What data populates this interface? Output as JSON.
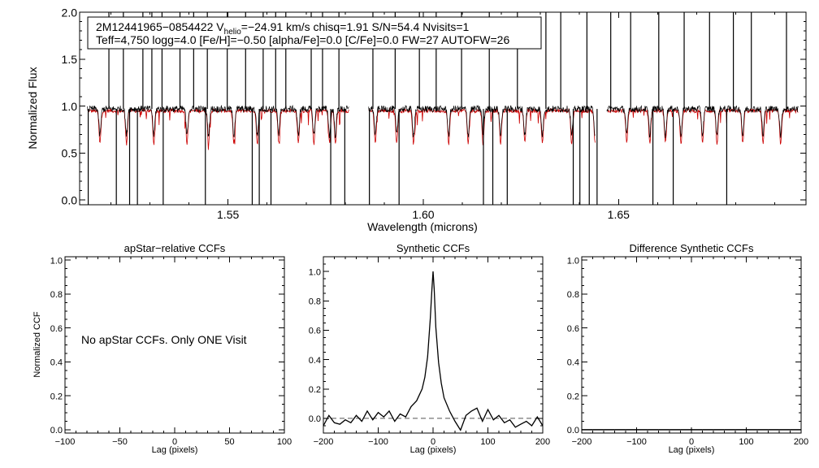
{
  "chart_data": [
    {
      "type": "line",
      "info_box": {
        "line1_prefix": "2M12441965−0854422  V",
        "line1_sub": "helio",
        "line1_suffix": "=−24.91 km/s  chisq=1.91  S/N=54.4  Nvisits=1",
        "line2": "Teff=4,750 logg=4.0 [Fe/H]=−0.50 [alpha/Fe]=0.0 [C/Fe]=0.0 FW=27 AUTOFW=26"
      },
      "xlabel": "Wavelength (microns)",
      "ylabel": "Normalized Flux",
      "xlim": [
        1.512,
        1.698
      ],
      "ylim": [
        -0.05,
        2.0
      ],
      "xticks": [
        "1.55",
        "1.60",
        "1.65"
      ],
      "xtick_values": [
        1.55,
        1.6,
        1.65
      ],
      "yticks": [
        "0.0",
        "0.5",
        "1.0",
        "1.5",
        "2.0"
      ],
      "ytick_values": [
        0.0,
        0.5,
        1.0,
        1.5,
        2.0
      ],
      "chip_ranges": [
        [
          1.514,
          1.581
        ],
        [
          1.586,
          1.644
        ],
        [
          1.647,
          1.696
        ]
      ],
      "series": [
        {
          "name": "",
          "color": "#000000",
          "role": "observed spectrum",
          "continuum": 0.97,
          "spikes_up": [
            1.5195,
            1.5232,
            1.5282,
            1.5305,
            1.5331,
            1.5377,
            1.5412,
            1.5447,
            1.5498,
            1.5545,
            1.559,
            1.5622,
            1.5648,
            1.5713,
            1.5742,
            1.5784,
            1.5871,
            1.5928,
            1.599,
            1.6033,
            1.6098,
            1.6169,
            1.6241,
            1.6314,
            1.6352,
            1.6419,
            1.648,
            1.6531,
            1.6603,
            1.6668,
            1.6733,
            1.6794,
            1.684,
            1.693
          ],
          "spikes_down": [
            1.5142,
            1.5214,
            1.5248,
            1.5268,
            1.5334,
            1.5442,
            1.5562,
            1.558,
            1.561,
            1.5763,
            1.5799,
            1.5862,
            1.5938,
            1.6154,
            1.6178,
            1.6215,
            1.6384,
            1.6401,
            1.6425,
            1.6445,
            1.6588,
            1.664,
            1.6777
          ]
        },
        {
          "name": "",
          "color": "#cc0000",
          "role": "synthetic spectrum",
          "continuum": 0.95,
          "absorption_lines": [
            1.5172,
            1.524,
            1.531,
            1.5395,
            1.545,
            1.5515,
            1.5575,
            1.563,
            1.568,
            1.572,
            1.576,
            1.5775,
            1.5877,
            1.5932,
            1.5975,
            1.6065,
            1.6115,
            1.6153,
            1.6198,
            1.626,
            1.6305,
            1.638,
            1.644,
            1.6521,
            1.658,
            1.662,
            1.666,
            1.6715,
            1.6752,
            1.6818,
            1.687,
            1.6915
          ]
        }
      ]
    },
    {
      "type": "line",
      "title": "apStar−relative CCFs",
      "ylabel": "Normalized CCF",
      "xlabel": "Lag (pixels)",
      "xlim": [
        -100,
        100
      ],
      "ylim": [
        -0.02,
        1.02
      ],
      "xticks": [
        "−100",
        "−50",
        "0",
        "50",
        "100"
      ],
      "xtick_values": [
        -100,
        -50,
        0,
        50,
        100
      ],
      "yticks": [
        "0.0",
        "0.2",
        "0.4",
        "0.6",
        "0.8",
        "1.0"
      ],
      "ytick_values": [
        0.0,
        0.2,
        0.4,
        0.6,
        0.8,
        1.0
      ],
      "annotation": "No apStar CCFs.  Only ONE Visit",
      "series": []
    },
    {
      "type": "line",
      "title": "Synthetic CCFs",
      "xlabel": "Lag (pixels)",
      "xlim": [
        -200,
        200
      ],
      "ylim": [
        -0.1,
        1.1
      ],
      "xticks": [
        "−200",
        "−100",
        "0",
        "100",
        "200"
      ],
      "xtick_values": [
        -200,
        -100,
        0,
        100,
        200
      ],
      "yticks": [
        "0.0",
        "0.2",
        "0.4",
        "0.6",
        "0.8",
        "1.0"
      ],
      "ytick_values": [
        0.0,
        0.2,
        0.4,
        0.6,
        0.8,
        1.0
      ],
      "series": [
        {
          "name": "",
          "color": "#000000",
          "x": [
            -200,
            -190,
            -180,
            -170,
            -160,
            -150,
            -140,
            -130,
            -120,
            -110,
            -100,
            -90,
            -80,
            -70,
            -60,
            -50,
            -40,
            -30,
            -20,
            -15,
            -10,
            -5,
            -2,
            0,
            2,
            5,
            10,
            15,
            20,
            30,
            40,
            50,
            60,
            70,
            80,
            90,
            100,
            110,
            120,
            130,
            140,
            150,
            160,
            170,
            180,
            190,
            200
          ],
          "y": [
            -0.05,
            0.02,
            -0.03,
            -0.04,
            -0.01,
            -0.03,
            0.02,
            -0.02,
            0.05,
            -0.01,
            0.04,
            0.01,
            0.05,
            -0.02,
            0.03,
            0.01,
            0.08,
            0.12,
            0.2,
            0.28,
            0.42,
            0.68,
            0.88,
            1.0,
            0.88,
            0.62,
            0.38,
            0.24,
            0.14,
            0.05,
            -0.02,
            -0.08,
            0.02,
            0.05,
            0.07,
            -0.02,
            0.06,
            -0.01,
            0.02,
            -0.03,
            -0.01,
            -0.06,
            -0.04,
            -0.02,
            -0.05,
            0.01,
            -0.05
          ]
        },
        {
          "name": "",
          "color": "#555555",
          "style": "dashed",
          "x": [
            -200,
            200
          ],
          "y": [
            0.0,
            0.0
          ]
        }
      ]
    },
    {
      "type": "line",
      "title": "Difference Synthetic CCFs",
      "xlabel": "Lag (pixels)",
      "xlim": [
        -200,
        200
      ],
      "ylim": [
        -0.02,
        1.02
      ],
      "xticks": [
        "−200",
        "−100",
        "0",
        "100",
        "200"
      ],
      "xtick_values": [
        -200,
        -100,
        0,
        100,
        200
      ],
      "yticks": [
        "0.0",
        "0.2",
        "0.4",
        "0.6",
        "0.8",
        "1.0"
      ],
      "ytick_values": [
        0.0,
        0.2,
        0.4,
        0.6,
        0.8,
        1.0
      ],
      "series": [
        {
          "name": "",
          "color": "#000000",
          "x": [
            -200,
            200
          ],
          "y": [
            0.0,
            0.0
          ]
        }
      ]
    }
  ]
}
